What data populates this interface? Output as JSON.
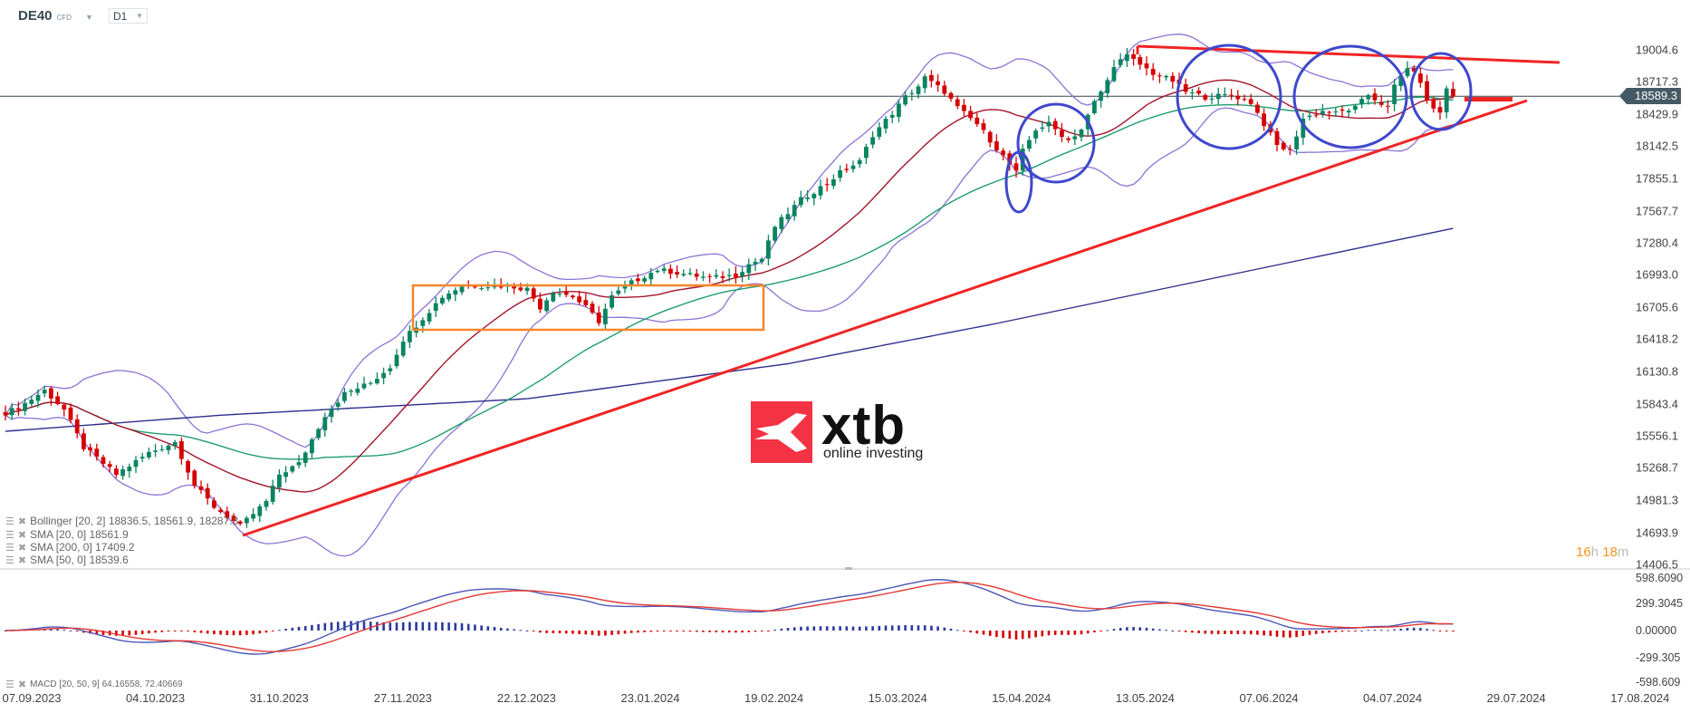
{
  "header": {
    "symbol": "DE40",
    "instrument_type": "CFD",
    "timeframe": "D1"
  },
  "legend": [
    {
      "text": "Bollinger  [20, 2] 18836.5,  18561.9,  18287.3"
    },
    {
      "text": "SMA [20, 0] 18561.9"
    },
    {
      "text": "SMA [200, 0] 17409.2"
    },
    {
      "text": "SMA [50, 0] 18539.6"
    }
  ],
  "macd_legend": {
    "text": "MACD  [20, 50, 9] 64.16558,  72.40669"
  },
  "countdown": {
    "hours": "16",
    "h": "h",
    "minutes": "18",
    "m": "m"
  },
  "logo": {
    "brand": "xtb",
    "tagline": "online investing"
  },
  "chart_data": {
    "type": "candlestick",
    "price_axis": {
      "ticks": [
        "19004.6",
        "18717.3",
        "18429.9",
        "18142.5",
        "17855.1",
        "17567.7",
        "17280.4",
        "16993.0",
        "16705.6",
        "16418.2",
        "16130.8",
        "15843.4",
        "15556.1",
        "15268.7",
        "14981.3",
        "14693.9",
        "14406.5"
      ],
      "range": [
        14406.5,
        19004.6
      ],
      "current_price": "18589.3"
    },
    "macd_axis": {
      "ticks": [
        "598.6090",
        "299.3045",
        "0.00000",
        "-299.305",
        "-598.609"
      ],
      "range": [
        -598.609,
        598.609
      ]
    },
    "x_ticks": [
      "07.09.2023",
      "04.10.2023",
      "31.10.2023",
      "27.11.2023",
      "22.12.2023",
      "23.01.2024",
      "19.02.2024",
      "15.03.2024",
      "15.04.2024",
      "13.05.2024",
      "07.06.2024",
      "04.07.2024",
      "29.07.2024",
      "17.08.2024"
    ],
    "close_waypoints": [
      [
        0,
        15760
      ],
      [
        2,
        15808
      ],
      [
        6,
        15962
      ],
      [
        9,
        15789
      ],
      [
        12,
        15451
      ],
      [
        17,
        15211
      ],
      [
        22,
        15404
      ],
      [
        26,
        15500
      ],
      [
        29,
        15114
      ],
      [
        32,
        14922
      ],
      [
        36,
        14748
      ],
      [
        40,
        14969
      ],
      [
        42,
        15211
      ],
      [
        45,
        15307
      ],
      [
        49,
        15740
      ],
      [
        52,
        15933
      ],
      [
        56,
        16029
      ],
      [
        59,
        16174
      ],
      [
        61,
        16415
      ],
      [
        64,
        16608
      ],
      [
        67,
        16800
      ],
      [
        70,
        16896
      ],
      [
        74,
        16896
      ],
      [
        77,
        16896
      ],
      [
        80,
        16868
      ],
      [
        82,
        16704
      ],
      [
        84,
        16849
      ],
      [
        87,
        16800
      ],
      [
        89,
        16704
      ],
      [
        91,
        16579
      ],
      [
        93,
        16800
      ],
      [
        96,
        16926
      ],
      [
        100,
        17041
      ],
      [
        105,
        16993
      ],
      [
        108,
        16965
      ],
      [
        112,
        16993
      ],
      [
        114,
        17089
      ],
      [
        116,
        17138
      ],
      [
        118,
        17427
      ],
      [
        122,
        17667
      ],
      [
        126,
        17812
      ],
      [
        128,
        17909
      ],
      [
        131,
        18005
      ],
      [
        133,
        18246
      ],
      [
        136,
        18438
      ],
      [
        138,
        18583
      ],
      [
        140,
        18680
      ],
      [
        141,
        18756
      ],
      [
        144,
        18631
      ],
      [
        146,
        18487
      ],
      [
        149,
        18342
      ],
      [
        151,
        18198
      ],
      [
        153,
        18053
      ],
      [
        155,
        17909
      ],
      [
        156,
        18101
      ],
      [
        158,
        18294
      ],
      [
        160,
        18342
      ],
      [
        163,
        18198
      ],
      [
        165,
        18294
      ],
      [
        167,
        18535
      ],
      [
        169,
        18727
      ],
      [
        170,
        18872
      ],
      [
        172,
        18949
      ],
      [
        174,
        18872
      ],
      [
        176,
        18795
      ],
      [
        179,
        18727
      ],
      [
        181,
        18631
      ],
      [
        184,
        18583
      ],
      [
        188,
        18603
      ],
      [
        191,
        18535
      ],
      [
        193,
        18342
      ],
      [
        195,
        18149
      ],
      [
        197,
        18101
      ],
      [
        199,
        18390
      ],
      [
        202,
        18457
      ],
      [
        204,
        18438
      ],
      [
        207,
        18487
      ],
      [
        209,
        18603
      ],
      [
        212,
        18487
      ],
      [
        213,
        18680
      ],
      [
        215,
        18853
      ],
      [
        217,
        18727
      ],
      [
        218,
        18535
      ],
      [
        220,
        18438
      ],
      [
        221,
        18660
      ],
      [
        222,
        18589.3
      ]
    ],
    "sma200_waypoints": [
      [
        0,
        15596
      ],
      [
        33,
        15740
      ],
      [
        80,
        15887
      ],
      [
        120,
        16200
      ],
      [
        152,
        16560
      ],
      [
        222,
        17409.2
      ]
    ],
    "indicators": {
      "bollinger": {
        "period": 20,
        "deviation": 2
      },
      "sma": [
        20,
        50,
        200
      ],
      "macd": {
        "fast": 20,
        "slow": 50,
        "signal": 9
      }
    },
    "colors": {
      "bull": "#0a8460",
      "bear": "#d50000",
      "sma20": "#a3152b",
      "sma50": "#1f9d6f",
      "sma200": "#2e2f8c",
      "bollinger": "#8c74d6",
      "macd": "#4b57b5",
      "signal": "#e53935",
      "hist_pos": "#2b3a9f",
      "hist_neg": "#d50000",
      "trendline": "#f02424",
      "range_box": "#f7862a",
      "pattern_circle": "#3f48cc",
      "countdown": "#f7931e"
    }
  }
}
